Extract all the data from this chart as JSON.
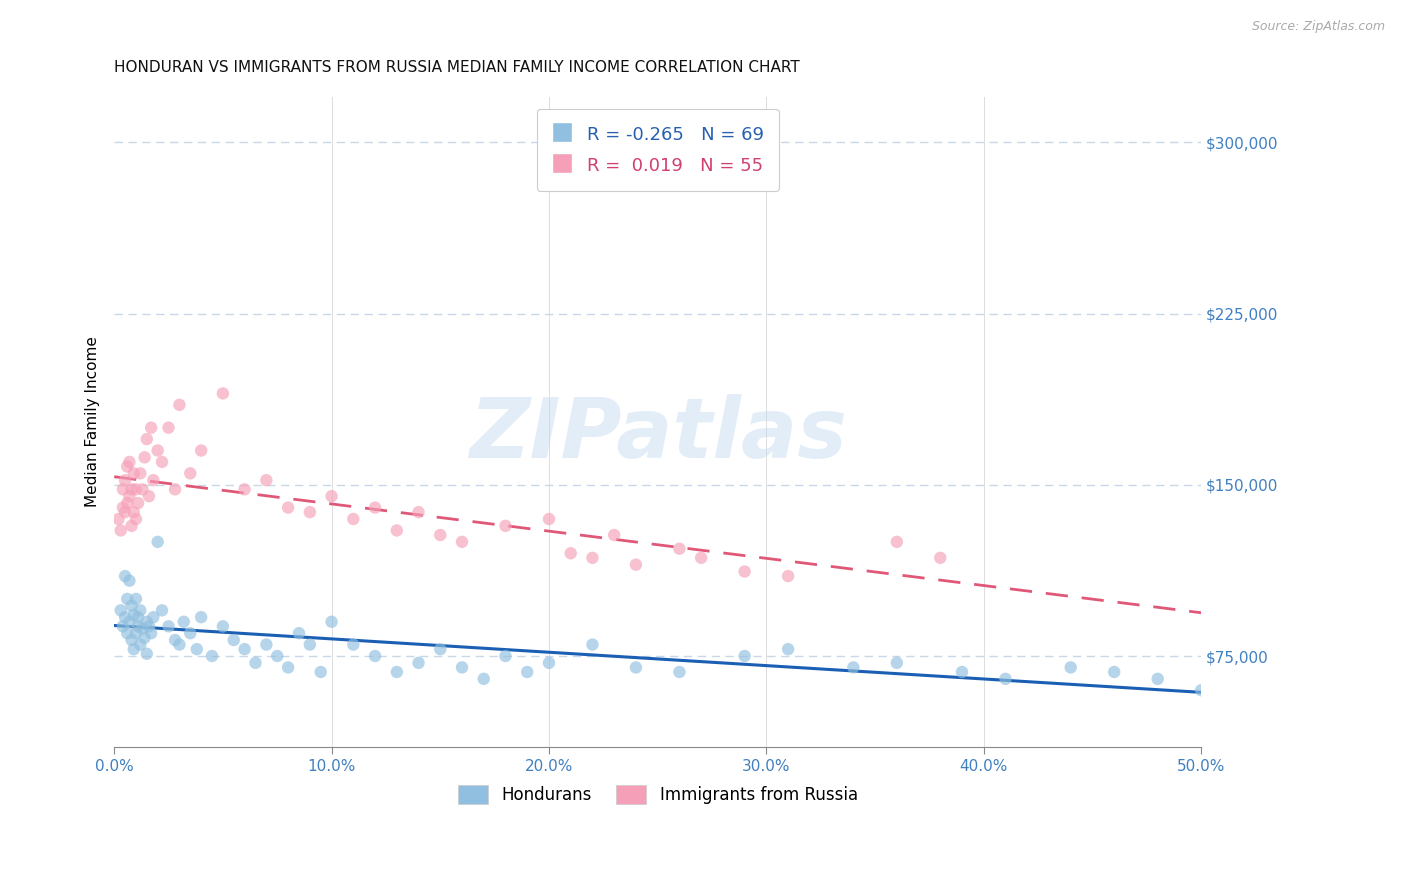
{
  "title": "HONDURAN VS IMMIGRANTS FROM RUSSIA MEDIAN FAMILY INCOME CORRELATION CHART",
  "source": "Source: ZipAtlas.com",
  "ylabel": "Median Family Income",
  "xlim": [
    0.0,
    0.5
  ],
  "ylim": [
    35000,
    320000
  ],
  "yticks": [
    75000,
    150000,
    225000,
    300000
  ],
  "ytick_labels": [
    "$75,000",
    "$150,000",
    "$225,000",
    "$300,000"
  ],
  "xticks": [
    0.0,
    0.1,
    0.2,
    0.3,
    0.4,
    0.5
  ],
  "xtick_labels": [
    "0.0%",
    "10.0%",
    "20.0%",
    "30.0%",
    "40.0%",
    "50.0%"
  ],
  "blue_color": "#90bfdf",
  "pink_color": "#f5a0b8",
  "trend_blue": "#1a5fb4",
  "trend_pink": "#e05878",
  "background": "#ffffff",
  "grid_color": "#c8d8e8",
  "legend_r_blue": "-0.265",
  "legend_n_blue": "69",
  "legend_r_pink": "0.019",
  "legend_n_pink": "55",
  "legend_label_blue": "Hondurans",
  "legend_label_pink": "Immigrants from Russia",
  "watermark": "ZIPatlas",
  "hondurans_x": [
    0.003,
    0.004,
    0.005,
    0.005,
    0.006,
    0.006,
    0.007,
    0.007,
    0.008,
    0.008,
    0.009,
    0.009,
    0.01,
    0.01,
    0.011,
    0.011,
    0.012,
    0.012,
    0.013,
    0.014,
    0.015,
    0.015,
    0.016,
    0.017,
    0.018,
    0.02,
    0.022,
    0.025,
    0.028,
    0.03,
    0.032,
    0.035,
    0.038,
    0.04,
    0.045,
    0.05,
    0.055,
    0.06,
    0.065,
    0.07,
    0.075,
    0.08,
    0.085,
    0.09,
    0.095,
    0.1,
    0.11,
    0.12,
    0.13,
    0.14,
    0.15,
    0.16,
    0.17,
    0.18,
    0.19,
    0.2,
    0.22,
    0.24,
    0.26,
    0.29,
    0.31,
    0.34,
    0.36,
    0.39,
    0.41,
    0.44,
    0.46,
    0.48,
    0.5
  ],
  "hondurans_y": [
    95000,
    88000,
    110000,
    92000,
    100000,
    85000,
    108000,
    90000,
    97000,
    82000,
    93000,
    78000,
    100000,
    85000,
    92000,
    88000,
    95000,
    80000,
    87000,
    83000,
    90000,
    76000,
    88000,
    85000,
    92000,
    125000,
    95000,
    88000,
    82000,
    80000,
    90000,
    85000,
    78000,
    92000,
    75000,
    88000,
    82000,
    78000,
    72000,
    80000,
    75000,
    70000,
    85000,
    80000,
    68000,
    90000,
    80000,
    75000,
    68000,
    72000,
    78000,
    70000,
    65000,
    75000,
    68000,
    72000,
    80000,
    70000,
    68000,
    75000,
    78000,
    70000,
    72000,
    68000,
    65000,
    70000,
    68000,
    65000,
    60000
  ],
  "russia_x": [
    0.002,
    0.003,
    0.004,
    0.004,
    0.005,
    0.005,
    0.006,
    0.006,
    0.007,
    0.007,
    0.008,
    0.008,
    0.009,
    0.009,
    0.01,
    0.01,
    0.011,
    0.012,
    0.013,
    0.014,
    0.015,
    0.016,
    0.017,
    0.018,
    0.02,
    0.022,
    0.025,
    0.028,
    0.03,
    0.035,
    0.04,
    0.05,
    0.06,
    0.07,
    0.08,
    0.09,
    0.1,
    0.11,
    0.12,
    0.13,
    0.14,
    0.15,
    0.16,
    0.18,
    0.2,
    0.21,
    0.22,
    0.23,
    0.24,
    0.26,
    0.27,
    0.29,
    0.31,
    0.36,
    0.38
  ],
  "russia_y": [
    135000,
    130000,
    148000,
    140000,
    152000,
    138000,
    158000,
    142000,
    160000,
    145000,
    148000,
    132000,
    155000,
    138000,
    148000,
    135000,
    142000,
    155000,
    148000,
    162000,
    170000,
    145000,
    175000,
    152000,
    165000,
    160000,
    175000,
    148000,
    185000,
    155000,
    165000,
    190000,
    148000,
    152000,
    140000,
    138000,
    145000,
    135000,
    140000,
    130000,
    138000,
    128000,
    125000,
    132000,
    135000,
    120000,
    118000,
    128000,
    115000,
    122000,
    118000,
    112000,
    110000,
    125000,
    118000
  ]
}
